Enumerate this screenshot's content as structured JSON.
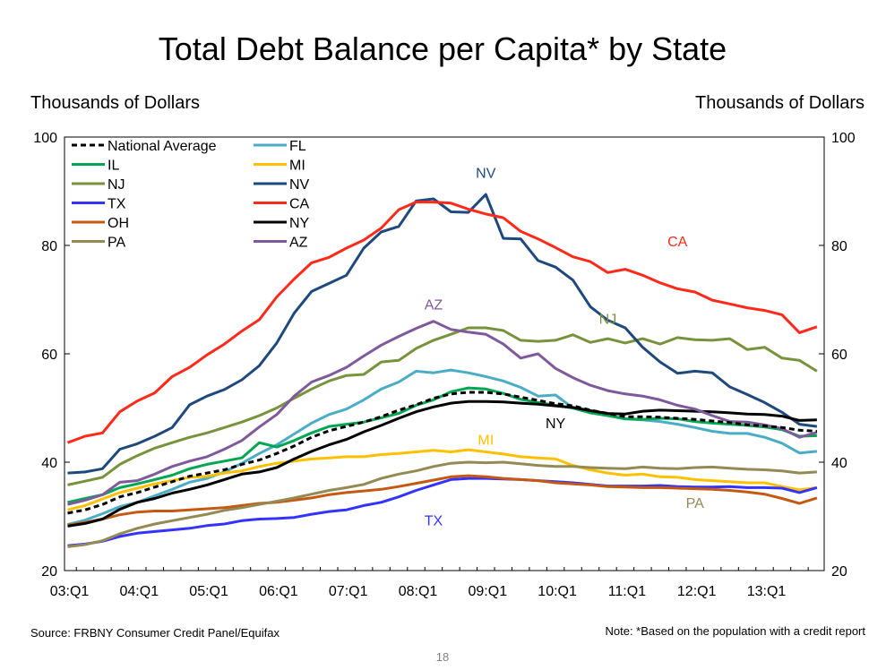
{
  "slide": {
    "title": "Total Debt Balance per Capita* by State",
    "left_axis_unit": "Thousands of Dollars",
    "right_axis_unit": "Thousands of Dollars",
    "source": "Source: FRBNY Consumer Credit Panel/Equifax",
    "note": "Note:  *Based on the population with a credit report",
    "page_number": "18"
  },
  "chart_data": {
    "type": "line",
    "ylim": [
      20,
      100
    ],
    "yticks": [
      20,
      40,
      60,
      80,
      100
    ],
    "x_tick_labels": [
      "03:Q1",
      "04:Q1",
      "05:Q1",
      "06:Q1",
      "07:Q1",
      "08:Q1",
      "09:Q1",
      "10:Q1",
      "11:Q1",
      "12:Q1",
      "13:Q1"
    ],
    "x": [
      "03:Q1",
      "03:Q2",
      "03:Q3",
      "03:Q4",
      "04:Q1",
      "04:Q2",
      "04:Q3",
      "04:Q4",
      "05:Q1",
      "05:Q2",
      "05:Q3",
      "05:Q4",
      "06:Q1",
      "06:Q2",
      "06:Q3",
      "06:Q4",
      "07:Q1",
      "07:Q2",
      "07:Q3",
      "07:Q4",
      "08:Q1",
      "08:Q2",
      "08:Q3",
      "08:Q4",
      "09:Q1",
      "09:Q2",
      "09:Q3",
      "09:Q4",
      "10:Q1",
      "10:Q2",
      "10:Q3",
      "10:Q4",
      "11:Q1",
      "11:Q2",
      "11:Q3",
      "11:Q4",
      "12:Q1",
      "12:Q2",
      "12:Q3",
      "12:Q4",
      "13:Q1",
      "13:Q2",
      "13:Q3",
      "13:Q4"
    ],
    "legend_position": "top-left",
    "grid": false,
    "series": [
      {
        "name": "National Average",
        "color": "#000000",
        "dash": true,
        "values": [
          30.6,
          31.2,
          32.2,
          33.6,
          34.4,
          35.4,
          36.4,
          37.4,
          38.0,
          38.6,
          39.6,
          40.4,
          41.6,
          43.0,
          44.6,
          45.8,
          46.6,
          47.4,
          48.4,
          49.6,
          50.6,
          51.8,
          52.6,
          52.9,
          52.9,
          52.6,
          52.0,
          51.4,
          50.8,
          50.4,
          49.6,
          49.0,
          48.4,
          48.4,
          48.3,
          48.1,
          47.9,
          47.6,
          47.3,
          46.9,
          46.7,
          46.4,
          45.9,
          45.7
        ]
      },
      {
        "name": "FL",
        "color": "#4bacc6",
        "values": [
          28.5,
          29.3,
          30.5,
          31.8,
          32.6,
          33.8,
          35.0,
          36.3,
          37.0,
          38.2,
          39.8,
          41.6,
          43.2,
          45.2,
          47.2,
          48.8,
          49.8,
          51.5,
          53.5,
          54.8,
          56.8,
          56.5,
          57.0,
          56.5,
          55.8,
          55.0,
          53.8,
          52.2,
          52.4,
          50.0,
          49.4,
          48.7,
          48.0,
          47.8,
          47.5,
          47.0,
          46.4,
          45.7,
          45.3,
          45.3,
          44.6,
          43.5,
          41.7,
          42.0
        ]
      },
      {
        "name": "IL",
        "color": "#00a651",
        "values": [
          32.6,
          33.3,
          34.0,
          35.3,
          36.0,
          36.8,
          37.6,
          38.8,
          39.6,
          40.2,
          40.8,
          43.6,
          42.8,
          44.0,
          45.4,
          46.6,
          47.0,
          47.4,
          48.2,
          49.0,
          50.5,
          51.5,
          53.0,
          53.7,
          53.5,
          52.7,
          51.6,
          51.0,
          50.5,
          50.0,
          49.1,
          48.6,
          48.0,
          47.9,
          48.1,
          48.0,
          47.5,
          47.2,
          47.0,
          46.8,
          46.5,
          46.0,
          44.8,
          44.9
        ]
      },
      {
        "name": "MI",
        "color": "#ffc000",
        "values": [
          31.2,
          32.0,
          33.2,
          34.4,
          35.2,
          36.0,
          36.6,
          37.2,
          37.4,
          38.0,
          38.4,
          39.2,
          39.8,
          40.2,
          40.6,
          40.8,
          41.0,
          41.0,
          41.4,
          41.6,
          41.9,
          42.2,
          41.9,
          42.3,
          41.9,
          41.5,
          41.0,
          40.8,
          40.6,
          39.4,
          38.6,
          38.0,
          37.6,
          37.8,
          37.3,
          37.2,
          36.8,
          36.6,
          36.4,
          36.2,
          36.2,
          35.5,
          34.9,
          35.3
        ]
      },
      {
        "name": "NJ",
        "color": "#77933c",
        "values": [
          35.8,
          36.5,
          37.2,
          39.6,
          41.2,
          42.6,
          43.6,
          44.6,
          45.4,
          46.4,
          47.4,
          48.6,
          50.0,
          51.8,
          53.5,
          55.0,
          56.0,
          56.2,
          58.5,
          58.8,
          61.0,
          62.5,
          63.6,
          64.8,
          64.8,
          64.3,
          62.5,
          62.3,
          62.5,
          63.5,
          62.1,
          62.8,
          62.0,
          62.8,
          61.8,
          63.0,
          62.6,
          62.5,
          62.8,
          60.8,
          61.2,
          59.2,
          58.8,
          56.8
        ]
      },
      {
        "name": "NV",
        "color": "#1f497d",
        "values": [
          38.0,
          38.2,
          38.8,
          42.4,
          43.4,
          44.8,
          46.4,
          50.6,
          52.2,
          53.4,
          55.2,
          57.8,
          62.0,
          67.5,
          71.5,
          73.0,
          74.5,
          79.5,
          82.5,
          83.5,
          88.2,
          88.6,
          86.2,
          86.1,
          89.4,
          81.3,
          81.2,
          77.2,
          76.0,
          73.6,
          68.7,
          66.2,
          64.8,
          61.2,
          58.5,
          56.4,
          56.8,
          56.5,
          53.9,
          52.5,
          51.0,
          49.2,
          47.0,
          46.6
        ]
      },
      {
        "name": "TX",
        "color": "#3333ff",
        "values": [
          24.6,
          24.9,
          25.4,
          26.3,
          26.9,
          27.2,
          27.5,
          27.8,
          28.3,
          28.6,
          29.2,
          29.5,
          29.6,
          29.8,
          30.4,
          30.9,
          31.2,
          32.0,
          32.6,
          33.6,
          34.8,
          35.8,
          36.8,
          37.0,
          37.0,
          36.9,
          36.8,
          36.6,
          36.4,
          36.2,
          35.9,
          35.6,
          35.6,
          35.6,
          35.7,
          35.5,
          35.4,
          35.4,
          35.5,
          35.3,
          35.3,
          35.2,
          34.4,
          35.3
        ]
      },
      {
        "name": "CA",
        "color": "#ff2a1a",
        "values": [
          43.6,
          44.8,
          45.4,
          49.3,
          51.3,
          52.8,
          55.8,
          57.5,
          59.8,
          61.8,
          64.2,
          66.3,
          70.5,
          73.8,
          76.8,
          77.8,
          79.5,
          81.0,
          83.2,
          86.6,
          88.0,
          88.0,
          87.8,
          86.7,
          85.8,
          85.1,
          82.6,
          81.2,
          79.6,
          77.9,
          77.0,
          75.0,
          75.6,
          74.5,
          73.1,
          72.0,
          71.4,
          69.9,
          69.2,
          68.5,
          68.0,
          67.2,
          63.9,
          65.0
        ]
      },
      {
        "name": "OH",
        "color": "#c65911",
        "values": [
          28.4,
          28.9,
          29.5,
          30.3,
          30.8,
          31.0,
          31.0,
          31.2,
          31.4,
          31.6,
          32.0,
          32.4,
          32.6,
          33.0,
          33.4,
          34.0,
          34.4,
          34.7,
          35.0,
          35.5,
          36.1,
          36.7,
          37.3,
          37.5,
          37.3,
          37.0,
          36.8,
          36.6,
          36.2,
          36.0,
          35.8,
          35.5,
          35.4,
          35.3,
          35.3,
          35.2,
          35.1,
          35.0,
          34.8,
          34.5,
          34.1,
          33.3,
          32.4,
          33.4
        ]
      },
      {
        "name": "NY",
        "color": "#000000",
        "values": [
          28.2,
          28.7,
          29.5,
          31.3,
          32.6,
          33.3,
          34.3,
          35.0,
          35.8,
          36.8,
          37.8,
          38.2,
          39.0,
          40.6,
          42.0,
          43.2,
          44.2,
          45.6,
          46.8,
          48.1,
          49.3,
          50.2,
          50.9,
          51.2,
          51.2,
          51.1,
          50.9,
          50.7,
          50.4,
          50.1,
          49.5,
          49.0,
          48.9,
          49.4,
          49.6,
          49.5,
          49.4,
          49.3,
          49.1,
          48.9,
          48.8,
          48.5,
          47.7,
          47.8
        ]
      },
      {
        "name": "PA",
        "color": "#948a54",
        "values": [
          24.4,
          24.8,
          25.5,
          26.8,
          27.8,
          28.6,
          29.2,
          29.8,
          30.4,
          31.1,
          31.6,
          32.2,
          32.8,
          33.4,
          34.1,
          34.8,
          35.3,
          35.9,
          37.0,
          37.8,
          38.4,
          39.2,
          39.8,
          40.0,
          39.9,
          40.0,
          39.7,
          39.4,
          39.2,
          39.2,
          39.0,
          38.9,
          38.8,
          39.1,
          38.9,
          38.8,
          39.0,
          39.1,
          38.9,
          38.7,
          38.6,
          38.4,
          38.0,
          38.2
        ]
      },
      {
        "name": "AZ",
        "color": "#7f5a9b",
        "values": [
          32.2,
          33.0,
          34.0,
          36.3,
          36.6,
          37.8,
          39.2,
          40.2,
          41.0,
          42.4,
          44.0,
          46.5,
          48.8,
          52.2,
          54.8,
          56.0,
          57.5,
          59.6,
          61.6,
          63.2,
          64.7,
          66.0,
          64.5,
          64.0,
          63.6,
          61.8,
          59.2,
          60.0,
          57.3,
          55.6,
          54.2,
          53.2,
          52.6,
          52.2,
          51.5,
          50.5,
          49.8,
          48.6,
          47.5,
          47.4,
          46.9,
          46.2,
          44.6,
          45.5
        ]
      }
    ],
    "annotations": [
      {
        "text": "NV",
        "series": "NV",
        "x": "09:Q1",
        "y": 93.5
      },
      {
        "text": "CA",
        "series": "CA",
        "x": "11:Q4",
        "y": 80.8
      },
      {
        "text": "AZ",
        "series": "AZ",
        "x": "08:Q2",
        "y": 69.2
      },
      {
        "text": "NJ",
        "series": "NJ",
        "x": "10:Q4",
        "y": 66.5
      },
      {
        "text": "NY",
        "series": "NY",
        "x": "10:Q1",
        "y": 47.3
      },
      {
        "text": "MI",
        "series": "MI",
        "x": "09:Q1",
        "y": 44.2
      },
      {
        "text": "PA",
        "series": "PA",
        "x": "12:Q1",
        "y": 32.6
      },
      {
        "text": "TX",
        "series": "TX",
        "x": "08:Q2",
        "y": 29.3
      }
    ]
  }
}
